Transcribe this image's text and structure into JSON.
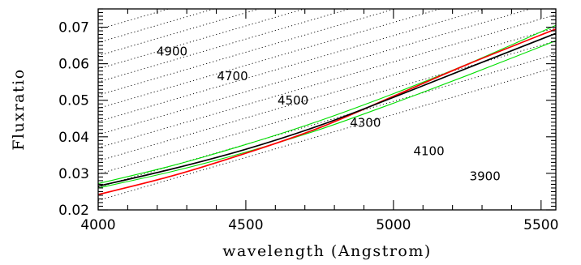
{
  "chart_data": {
    "type": "line",
    "title": "",
    "xlabel": "wavelength (Angstrom)",
    "ylabel": "Fluxratio",
    "xlim": [
      4000,
      5550
    ],
    "ylim": [
      0.02,
      0.075
    ],
    "x_ticks": [
      4000,
      4500,
      5000,
      5500
    ],
    "x_tick_labels": [
      "4000",
      "4500",
      "5000",
      "5500"
    ],
    "y_ticks": [
      0.02,
      0.03,
      0.04,
      0.05,
      0.06,
      0.07
    ],
    "y_tick_labels": [
      "0.02",
      "0.03",
      "0.04",
      "0.05",
      "0.06",
      "0.07"
    ],
    "grid": false,
    "legend": "none",
    "series": [
      {
        "color": "#00e000",
        "style": "solid",
        "x": [
          4000,
          4250,
          4500,
          4750,
          5000,
          5250,
          5550
        ],
        "y": [
          0.0272,
          0.0321,
          0.0379,
          0.0444,
          0.0518,
          0.0599,
          0.0705
        ]
      },
      {
        "color": "#00e000",
        "style": "solid",
        "x": [
          4000,
          4250,
          4500,
          4750,
          5000,
          5250,
          5550
        ],
        "y": [
          0.026,
          0.0305,
          0.0358,
          0.042,
          0.0492,
          0.0568,
          0.0663
        ]
      },
      {
        "color": "#ff0000",
        "style": "solid",
        "x": [
          4000,
          4250,
          4500,
          4750,
          5000,
          5250,
          5550
        ],
        "y": [
          0.0242,
          0.0293,
          0.0355,
          0.0425,
          0.0511,
          0.0598,
          0.0695
        ]
      },
      {
        "color": "#000000",
        "style": "solid",
        "x": [
          4000,
          4250,
          4500,
          4750,
          5000,
          5250,
          5550
        ],
        "y": [
          0.0265,
          0.0312,
          0.0366,
          0.0431,
          0.0508,
          0.0588,
          0.0683
        ]
      }
    ],
    "contours": {
      "style": "dotted",
      "color": "#000000",
      "slope_per_angstrom": 2.35e-05,
      "intercepts_at_4000": [
        0.0226,
        0.0262,
        0.0298,
        0.0334,
        0.037,
        0.0406,
        0.0442,
        0.0478,
        0.0514,
        0.055,
        0.0586,
        0.0622,
        0.0658,
        0.0694
      ],
      "labels": [
        {
          "text": "4900",
          "x": 4250,
          "y": 0.0623
        },
        {
          "text": "4700",
          "x": 4455,
          "y": 0.0555
        },
        {
          "text": "4500",
          "x": 4660,
          "y": 0.0488
        },
        {
          "text": "4300",
          "x": 4905,
          "y": 0.0427
        },
        {
          "text": "4100",
          "x": 5120,
          "y": 0.035
        },
        {
          "text": "3900",
          "x": 5310,
          "y": 0.0281
        }
      ]
    }
  }
}
